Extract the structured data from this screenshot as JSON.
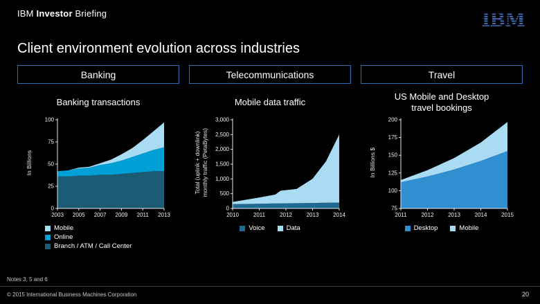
{
  "header": {
    "brand": "IBM",
    "bold": "Investor",
    "rest": "Briefing",
    "logo_text": "IBM"
  },
  "title": "Client environment evolution across industries",
  "industries": [
    {
      "label": "Banking"
    },
    {
      "label": "Telecommunications"
    },
    {
      "label": "Travel"
    }
  ],
  "colors": {
    "background": "#000000",
    "box_border": "#2e6db4",
    "logo_blue": "#3f6ab3",
    "axis": "#e6e6e6",
    "light_blue": "#a9dbf3",
    "cyan_blue": "#00a0d6",
    "dark_teal": "#1b5c74",
    "voice_blue": "#1f6a93",
    "desktop_blue": "#2f8fd0"
  },
  "chart_data": [
    {
      "type": "area",
      "stacked": true,
      "name": "banking-transactions",
      "title": "Banking transactions",
      "ylabel": "In Billions",
      "xlabel": "",
      "x": [
        2003,
        2004,
        2005,
        2006,
        2007,
        2008,
        2009,
        2010,
        2011,
        2012,
        2013
      ],
      "series": [
        {
          "name": "Branch / ATM / Call Center",
          "color": "#1b5c74",
          "values": [
            36,
            36,
            37,
            37,
            38,
            38,
            39,
            40,
            41,
            42,
            42
          ]
        },
        {
          "name": "Online",
          "color": "#00a0d6",
          "values": [
            6,
            7,
            8,
            9,
            11,
            13,
            15,
            18,
            21,
            24,
            27
          ]
        },
        {
          "name": "Mobile",
          "color": "#a9dbf3",
          "values": [
            0,
            0,
            1,
            1,
            2,
            4,
            7,
            10,
            15,
            21,
            28
          ]
        }
      ],
      "ylim": [
        0,
        100
      ],
      "yticks": [
        0,
        25,
        50,
        75,
        100
      ],
      "ytick_labels": [
        "0",
        "25",
        "50",
        "75",
        "100"
      ],
      "xticks": [
        2003,
        2005,
        2007,
        2009,
        2011,
        2013
      ],
      "xtick_labels": [
        "2003",
        "2005",
        "2007",
        "2009",
        "2011",
        "2013"
      ],
      "grid": false,
      "legend_layout": "column",
      "legend_position": "bottom-left",
      "legend": [
        {
          "label": "Mobile",
          "color": "#a9dbf3"
        },
        {
          "label": "Online",
          "color": "#00a0d6"
        },
        {
          "label": "Branch / ATM / Call Center",
          "color": "#1b5c74"
        }
      ]
    },
    {
      "type": "area",
      "stacked": true,
      "name": "mobile-data-traffic",
      "title": "Mobile data traffic",
      "ylabel": "Total (uplink + downlink)\nmonthly traffic (PetaBytes)",
      "xlabel": "",
      "x": [
        2010,
        2011,
        2011.6,
        2011.8,
        2012.4,
        2013,
        2013.5,
        2014
      ],
      "series": [
        {
          "name": "Voice",
          "color": "#1f6a93",
          "values": [
            145,
            160,
            168,
            170,
            178,
            185,
            192,
            200
          ]
        },
        {
          "name": "Data",
          "color": "#a9dbf3",
          "values": [
            75,
            210,
            300,
            430,
            480,
            820,
            1400,
            2300
          ]
        }
      ],
      "ylim": [
        0,
        3000
      ],
      "yticks": [
        0,
        500,
        1000,
        1500,
        2000,
        2500,
        3000
      ],
      "ytick_labels": [
        "0",
        "500",
        "1,000",
        "1,500",
        "2,000",
        "2,500",
        "3,000"
      ],
      "xticks": [
        2010,
        2011,
        2012,
        2013,
        2014
      ],
      "xtick_labels": [
        "2010",
        "2011",
        "2012",
        "2013",
        "2014"
      ],
      "grid": false,
      "legend_layout": "row",
      "legend_position": "bottom-center",
      "legend": [
        {
          "label": "Voice",
          "color": "#1f6a93"
        },
        {
          "label": "Data",
          "color": "#a9dbf3"
        }
      ]
    },
    {
      "type": "area",
      "stacked": true,
      "name": "us-travel-bookings",
      "title": "US Mobile and Desktop\ntravel bookings",
      "ylabel": "In Billions $",
      "xlabel": "",
      "x": [
        2011,
        2012,
        2013,
        2014,
        2015
      ],
      "series": [
        {
          "name": "Desktop",
          "color": "#2f8fd0",
          "values": [
            112,
            120,
            130,
            142,
            156
          ]
        },
        {
          "name": "Mobile",
          "color": "#a9dbf3",
          "values": [
            3,
            9,
            16,
            26,
            41
          ]
        }
      ],
      "ylim": [
        75,
        200
      ],
      "yticks": [
        75,
        100,
        125,
        150,
        175,
        200
      ],
      "ytick_labels": [
        "75",
        "100",
        "125",
        "150",
        "175",
        "200"
      ],
      "xticks": [
        2011,
        2012,
        2013,
        2014,
        2015
      ],
      "xtick_labels": [
        "2011",
        "2012",
        "2013",
        "2014",
        "2015"
      ],
      "grid": false,
      "legend_layout": "row",
      "legend_position": "bottom-center",
      "legend": [
        {
          "label": "Desktop",
          "color": "#2f8fd0"
        },
        {
          "label": "Mobile",
          "color": "#a9dbf3"
        }
      ]
    }
  ],
  "footer": {
    "notes": "Notes 3, 5 and 6",
    "copyright": "© 2015 International Business Machines Corporation",
    "page": "20"
  }
}
